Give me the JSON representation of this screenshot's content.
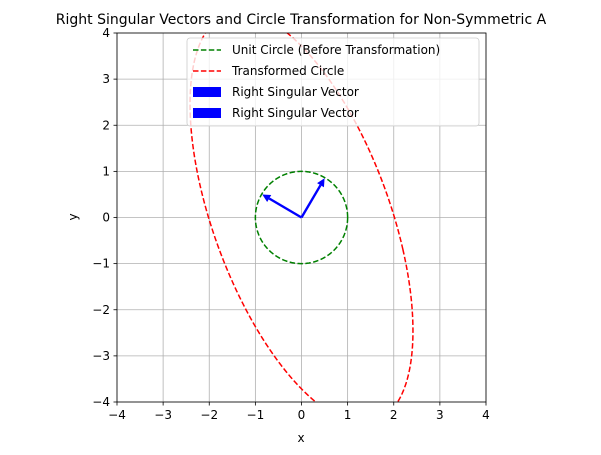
{
  "chart_data": {
    "type": "line",
    "title": "Right Singular Vectors and Circle Transformation for Non-Symmetric A",
    "xlabel": "x",
    "ylabel": "y",
    "xlim": [
      -4,
      4
    ],
    "ylim": [
      -4,
      4
    ],
    "xticks": [
      -4,
      -3,
      -2,
      -1,
      0,
      1,
      2,
      3,
      4
    ],
    "yticks": [
      -4,
      -3,
      -2,
      -1,
      0,
      1,
      2,
      3,
      4
    ],
    "xtick_labels": [
      "−4",
      "−3",
      "−2",
      "−1",
      "0",
      "1",
      "2",
      "3",
      "4"
    ],
    "ytick_labels": [
      "−4",
      "−3",
      "−2",
      "−1",
      "0",
      "1",
      "2",
      "3",
      "4"
    ],
    "grid": true,
    "legend_position": "top-right",
    "series": [
      {
        "name": "Unit Circle (Before Transformation)",
        "style": "dashed",
        "color": "#008000",
        "curve": "circle",
        "center": [
          0,
          0
        ],
        "radius": 1
      },
      {
        "name": "Transformed Circle",
        "style": "dashed",
        "color": "#ff0000",
        "curve": "ellipse",
        "center": [
          0,
          0
        ],
        "matrix": [
          [
            2.2,
            -1.0
          ],
          [
            -0.7,
            4.4
          ]
        ]
      }
    ],
    "vectors": [
      {
        "name": "Right Singular Vector",
        "color": "#0000ff",
        "origin": [
          0,
          0
        ],
        "end": [
          0.5,
          0.85
        ]
      },
      {
        "name": "Right Singular Vector",
        "color": "#0000ff",
        "origin": [
          0,
          0
        ],
        "end": [
          -0.85,
          0.5
        ]
      }
    ]
  }
}
